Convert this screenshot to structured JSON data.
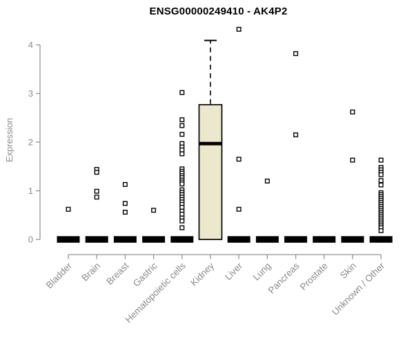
{
  "chart_data": {
    "type": "boxplot",
    "title": "ENSG00000249410 - AK4P2",
    "ylabel": "Expression",
    "xlabel": "",
    "yticks": [
      0,
      1,
      2,
      3,
      4
    ],
    "ylim": [
      0,
      4.4
    ],
    "grid": false,
    "legend": "none",
    "categories": [
      "Bladder",
      "Brain",
      "Breast",
      "Gastric",
      "Hematopoietic cells",
      "Kidney",
      "Liver",
      "Lung",
      "Pancreas",
      "Prostate",
      "Skin",
      "Unknown / Other"
    ],
    "boxes": [
      {
        "category": "Bladder",
        "q1": 0,
        "median": 0,
        "q3": 0,
        "whisker_low": 0,
        "whisker_high": 0,
        "outliers": [
          0.62
        ]
      },
      {
        "category": "Brain",
        "q1": 0,
        "median": 0,
        "q3": 0,
        "whisker_low": 0,
        "whisker_high": 0,
        "outliers": [
          1.44,
          1.38,
          0.99,
          0.87
        ]
      },
      {
        "category": "Breast",
        "q1": 0,
        "median": 0,
        "q3": 0,
        "whisker_low": 0,
        "whisker_high": 0,
        "outliers": [
          1.13,
          0.74,
          0.56
        ]
      },
      {
        "category": "Gastric",
        "q1": 0,
        "median": 0,
        "q3": 0,
        "whisker_low": 0,
        "whisker_high": 0,
        "outliers": [
          0.6
        ]
      },
      {
        "category": "Hematopoietic cells",
        "q1": 0,
        "median": 0,
        "q3": 0,
        "whisker_low": 0,
        "whisker_high": 0,
        "outliers": [
          3.02,
          2.46,
          2.34,
          2.16,
          1.97,
          1.9,
          1.84,
          1.76,
          1.45,
          1.4,
          1.36,
          1.31,
          1.27,
          1.22,
          1.18,
          1.14,
          1.02,
          0.97,
          0.92,
          0.87,
          0.82,
          0.77,
          0.72,
          0.66,
          0.58,
          0.52,
          0.44,
          0.38,
          0.24
        ]
      },
      {
        "category": "Kidney",
        "q1": 0,
        "median": 1.97,
        "q3": 2.77,
        "whisker_low": 0,
        "whisker_high": 4.09,
        "outliers": []
      },
      {
        "category": "Liver",
        "q1": 0,
        "median": 0,
        "q3": 0,
        "whisker_low": 0,
        "whisker_high": 0,
        "outliers": [
          4.32,
          1.65,
          0.62
        ]
      },
      {
        "category": "Lung",
        "q1": 0,
        "median": 0,
        "q3": 0,
        "whisker_low": 0,
        "whisker_high": 0,
        "outliers": [
          1.2
        ]
      },
      {
        "category": "Pancreas",
        "q1": 0,
        "median": 0,
        "q3": 0,
        "whisker_low": 0,
        "whisker_high": 0,
        "outliers": [
          3.82,
          2.15
        ]
      },
      {
        "category": "Prostate",
        "q1": 0,
        "median": 0,
        "q3": 0,
        "whisker_low": 0,
        "whisker_high": 0,
        "outliers": []
      },
      {
        "category": "Skin",
        "q1": 0,
        "median": 0,
        "q3": 0,
        "whisker_low": 0,
        "whisker_high": 0,
        "outliers": [
          2.62,
          1.63
        ]
      },
      {
        "category": "Unknown / Other",
        "q1": 0,
        "median": 0,
        "q3": 0,
        "whisker_low": 0,
        "whisker_high": 0,
        "outliers": [
          1.63,
          1.48,
          1.43,
          1.38,
          1.33,
          1.21,
          1.12,
          0.96,
          0.92,
          0.88,
          0.84,
          0.8,
          0.76,
          0.72,
          0.68,
          0.64,
          0.6,
          0.56,
          0.52,
          0.48,
          0.44,
          0.4,
          0.36,
          0.32,
          0.28,
          0.24,
          0.18
        ]
      }
    ],
    "colors": {
      "box_fill": "#ece8cd",
      "box_border": "#000000",
      "median": "#000000",
      "outlier_fill": "#ffffff",
      "outlier_border": "#000000",
      "axis_line": "#919191",
      "tick_label": "#8a8a8a",
      "title": "#000000",
      "background": "#ffffff"
    }
  }
}
